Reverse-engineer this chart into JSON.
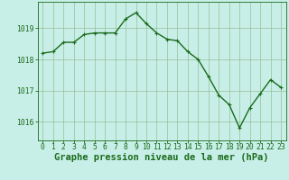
{
  "x": [
    0,
    1,
    2,
    3,
    4,
    5,
    6,
    7,
    8,
    9,
    10,
    11,
    12,
    13,
    14,
    15,
    16,
    17,
    18,
    19,
    20,
    21,
    22,
    23
  ],
  "y": [
    1018.2,
    1018.25,
    1018.55,
    1018.55,
    1018.8,
    1018.85,
    1018.85,
    1018.85,
    1019.3,
    1019.5,
    1019.15,
    1018.85,
    1018.65,
    1018.6,
    1018.25,
    1018.0,
    1017.45,
    1016.85,
    1016.55,
    1015.8,
    1016.45,
    1016.9,
    1017.35,
    1017.1
  ],
  "line_color": "#1a6b1a",
  "marker_color": "#1a6b1a",
  "bg_color": "#c8eee8",
  "grid_color": "#8fbc8f",
  "title": "Graphe pression niveau de la mer (hPa)",
  "ylim_min": 1015.4,
  "ylim_max": 1019.85,
  "yticks": [
    1016,
    1017,
    1018,
    1019
  ],
  "xticks": [
    0,
    1,
    2,
    3,
    4,
    5,
    6,
    7,
    8,
    9,
    10,
    11,
    12,
    13,
    14,
    15,
    16,
    17,
    18,
    19,
    20,
    21,
    22,
    23
  ],
  "title_fontsize": 7.5,
  "tick_fontsize": 5.8,
  "line_width": 1.0,
  "marker_size": 2.5
}
